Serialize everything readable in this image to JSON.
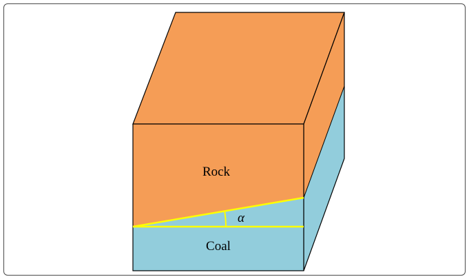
{
  "labels": {
    "rock": "Rock",
    "coal": "Coal",
    "angle": "α"
  },
  "colors": {
    "rock": "#F59D56",
    "coal": "#92CDDC",
    "edge": "#000000",
    "highlight": "#FFFF00",
    "frame": "#4A4A4A"
  }
}
